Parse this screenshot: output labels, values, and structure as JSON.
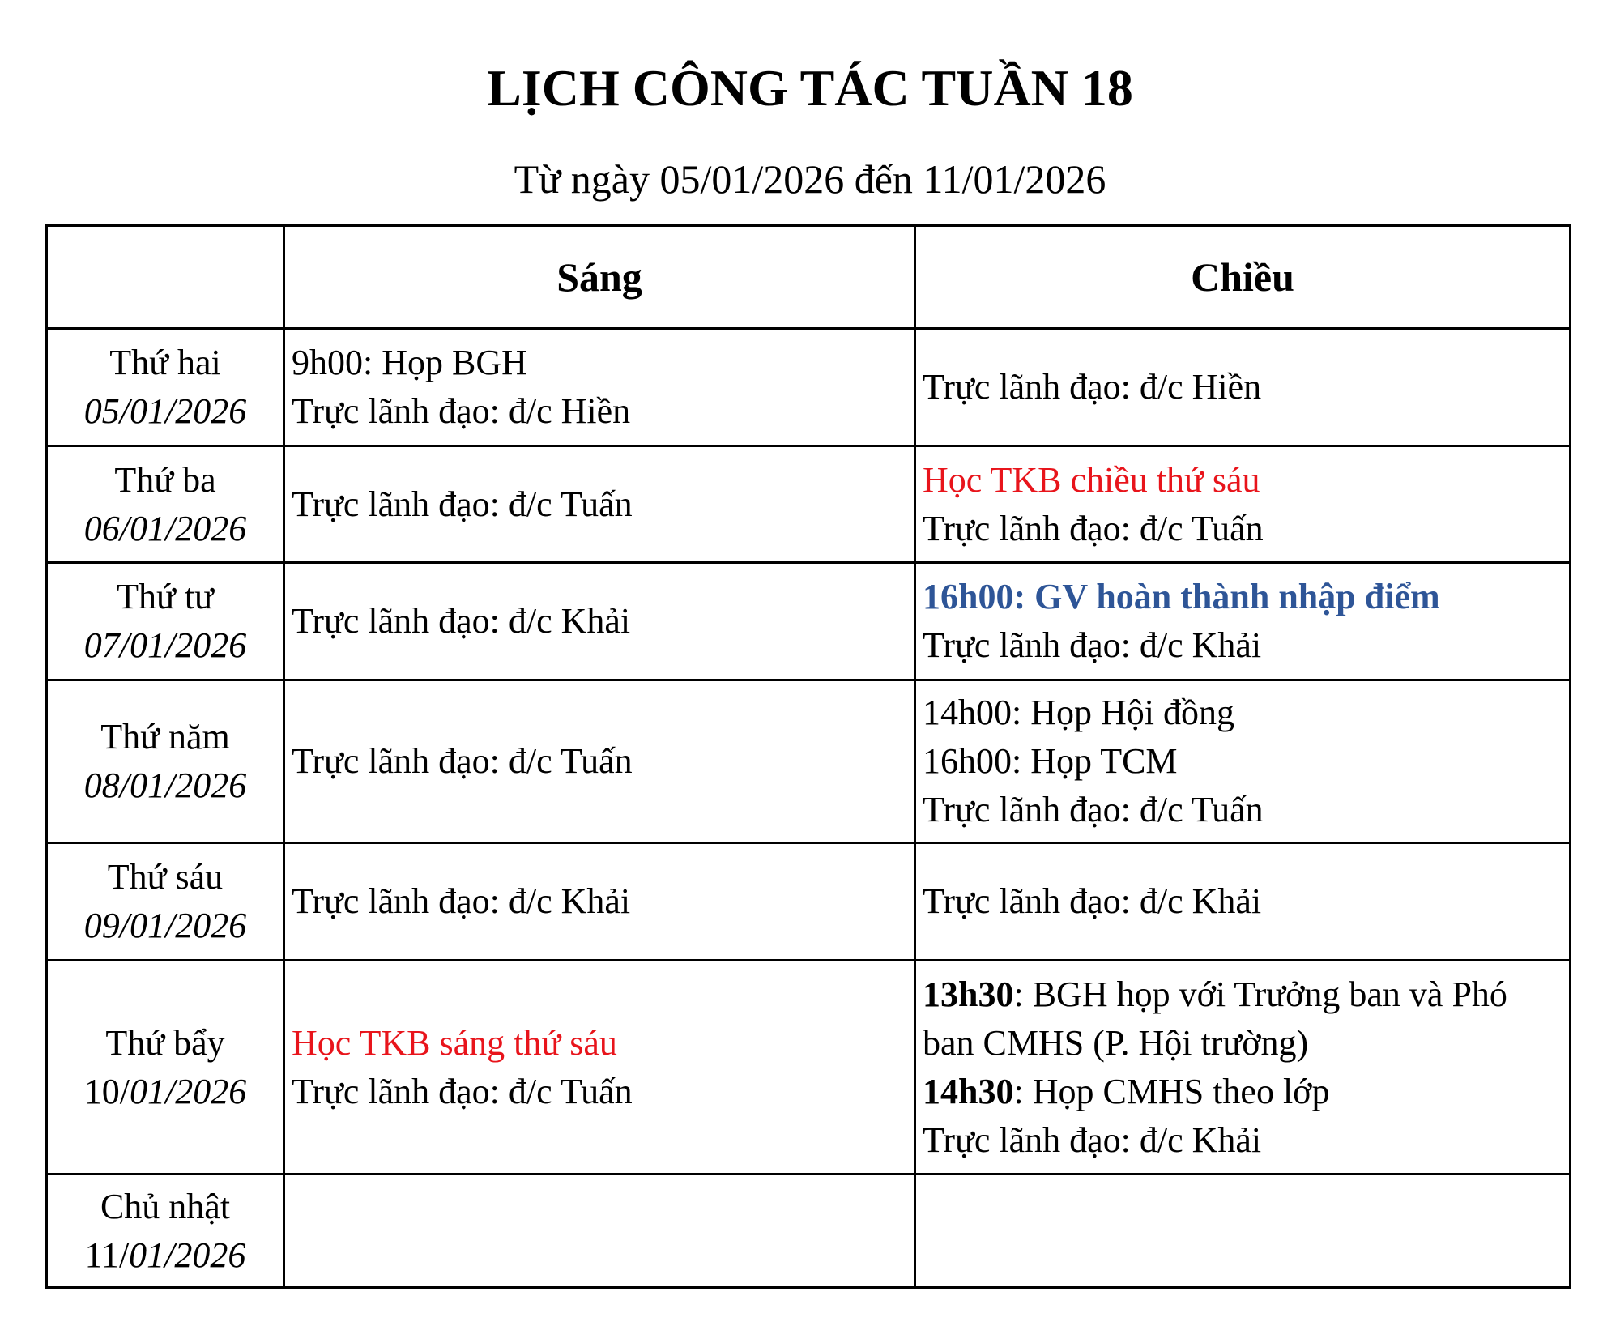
{
  "title": "LỊCH CÔNG TÁC TUẦN 18",
  "subtitle": "Từ ngày 05/01/2026 đến 11/01/2026",
  "headers": {
    "day": "",
    "morning": "Sáng",
    "afternoon": "Chiều"
  },
  "colors": {
    "red": "#e8141b",
    "blue": "#2e5597"
  },
  "rows": [
    {
      "day": "Thứ hai",
      "date_prefix": "",
      "date": "05/01/2026",
      "height": 145,
      "morning": [
        {
          "text": "9h00: Họp BGH"
        },
        {
          "text": "Trực lãnh đạo: đ/c Hiền"
        }
      ],
      "afternoon": [
        {
          "text": "Trực lãnh đạo: đ/c Hiền"
        }
      ]
    },
    {
      "day": "Thứ ba",
      "date_prefix": "",
      "date": "06/01/2026",
      "height": 144,
      "morning": [
        {
          "text": "Trực lãnh đạo: đ/c Tuấn"
        }
      ],
      "afternoon": [
        {
          "text": "Học TKB chiều thứ sáu",
          "style": "red"
        },
        {
          "text": "Trực lãnh đạo: đ/c Tuấn"
        }
      ]
    },
    {
      "day": "Thứ tư",
      "date_prefix": "",
      "date": "07/01/2026",
      "height": 145,
      "morning": [
        {
          "text": "Trực lãnh đạo: đ/c Khải"
        }
      ],
      "afternoon": [
        {
          "text": "16h00: GV hoàn thành nhập điểm",
          "style": "blue"
        },
        {
          "text": "Trực lãnh đạo: đ/c Khải"
        }
      ]
    },
    {
      "day": "Thứ năm",
      "date_prefix": "",
      "date": "08/01/2026",
      "height": 201,
      "morning": [
        {
          "text": "Trực lãnh đạo: đ/c Tuấn"
        }
      ],
      "afternoon": [
        {
          "text": "14h00: Họp Hội đồng"
        },
        {
          "text": "16h00: Họp TCM"
        },
        {
          "text": "Trực lãnh đạo: đ/c Tuấn"
        }
      ]
    },
    {
      "day": "Thứ sáu",
      "date_prefix": "",
      "date": "09/01/2026",
      "height": 145,
      "morning": [
        {
          "text": "Trực lãnh đạo: đ/c Khải"
        }
      ],
      "afternoon": [
        {
          "text": "Trực lãnh đạo: đ/c Khải"
        }
      ]
    },
    {
      "day": "Thứ bẩy",
      "date_prefix": "10/",
      "date": "01/2026",
      "height": 264,
      "morning": [
        {
          "text": "Học TKB sáng thứ sáu",
          "style": "red"
        },
        {
          "text": "Trực lãnh đạo: đ/c Tuấn"
        }
      ],
      "afternoon": [
        {
          "bold": "13h30",
          "text": ": BGH họp với Trưởng ban và Phó"
        },
        {
          "text": "ban CMHS (P. Hội trường)"
        },
        {
          "bold": "14h30",
          "text": ": Họp CMHS theo lớp"
        },
        {
          "text": "Trực lãnh đạo: đ/c Khải"
        }
      ]
    },
    {
      "day": "Chủ nhật",
      "date_prefix": "11/",
      "date": "01/2026",
      "height": 140,
      "morning": [],
      "afternoon": []
    }
  ]
}
